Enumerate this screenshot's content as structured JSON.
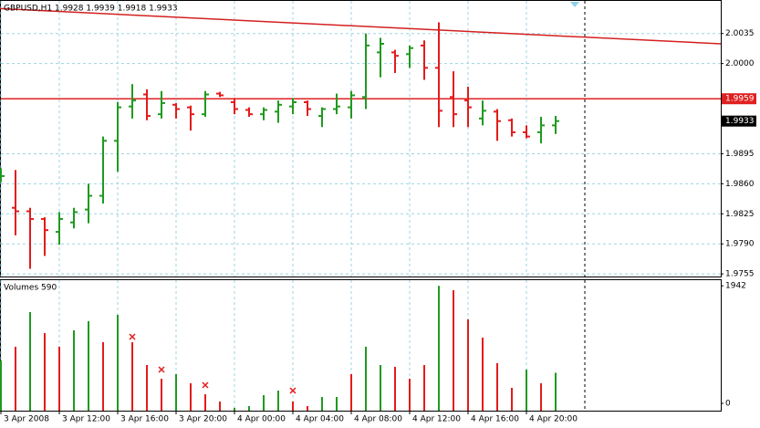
{
  "chart_data": [
    {
      "type": "ohlc",
      "title": "GBPUSD,H1  1.9928 1.9939 1.9918 1.9933",
      "categories": [
        "3 Apr 2008",
        null,
        null,
        null,
        "3 Apr 12:00",
        null,
        null,
        null,
        "3 Apr 16:00",
        null,
        null,
        null,
        "3 Apr 20:00",
        null,
        null,
        null,
        "4 Apr 00:00",
        null,
        null,
        null,
        "4 Apr 04:00",
        null,
        null,
        null,
        "4 Apr 08:00",
        null,
        null,
        null,
        "4 Apr 12:00",
        null,
        null,
        null,
        "4 Apr 16:00",
        null,
        null,
        null,
        "4 Apr 20:00",
        null,
        null
      ],
      "open": [
        1.9865,
        1.9832,
        1.9828,
        1.9819,
        1.9804,
        1.9815,
        1.983,
        1.9846,
        1.991,
        1.995,
        1.9964,
        1.9941,
        1.9952,
        1.9949,
        1.9941,
        1.9965,
        1.9955,
        1.9946,
        1.9941,
        1.9944,
        1.995,
        1.9955,
        1.9939,
        1.9947,
        1.9949,
        1.9961,
        2.0013,
        2.0013,
        2.0011,
        2.0021,
        1.9995,
        1.9961,
        1.9957,
        1.9936,
        1.9944,
        1.9934,
        1.992,
        1.992,
        1.9928
      ],
      "high": [
        1.9878,
        1.9876,
        1.9832,
        1.9821,
        1.9827,
        1.9832,
        1.986,
        1.9915,
        1.9955,
        1.9976,
        1.997,
        1.9968,
        1.9954,
        1.9951,
        1.9968,
        1.9967,
        1.996,
        1.9949,
        1.9949,
        1.9957,
        1.996,
        1.9957,
        1.9949,
        1.9965,
        1.9968,
        2.0035,
        2.003,
        2.0016,
        2.0021,
        2.0027,
        2.0048,
        1.9991,
        1.9973,
        1.9957,
        1.9947,
        1.9936,
        1.9928,
        1.9938,
        1.9939
      ],
      "low": [
        1.9862,
        1.98,
        1.9761,
        1.9776,
        1.9789,
        1.9808,
        1.9814,
        1.9837,
        1.9874,
        1.9936,
        1.9934,
        1.9936,
        1.9936,
        1.9922,
        1.9938,
        1.9961,
        1.9941,
        1.9938,
        1.9934,
        1.9931,
        1.9941,
        1.9939,
        1.9926,
        1.9941,
        1.9936,
        1.9947,
        1.9984,
        1.9989,
        1.9995,
        1.9981,
        1.9926,
        1.9926,
        1.9926,
        1.9928,
        1.991,
        1.9915,
        1.9913,
        1.9907,
        1.9918
      ],
      "close": [
        1.9869,
        1.9828,
        1.9819,
        1.9806,
        1.9819,
        1.9827,
        1.9846,
        1.991,
        1.9949,
        1.9957,
        1.9939,
        1.9954,
        1.9947,
        1.9941,
        1.9964,
        1.9963,
        1.9947,
        1.9941,
        1.9946,
        1.9952,
        1.9955,
        1.9947,
        1.9947,
        1.995,
        1.9963,
        2.0021,
        2.0023,
        2.0009,
        2.0018,
        1.9995,
        1.9945,
        1.9941,
        1.9949,
        1.9945,
        1.9933,
        1.992,
        1.9915,
        1.9928,
        1.9933
      ],
      "up_color": "#1f9a1f",
      "down_color": "#e41b1b",
      "ylim": [
        1.9752,
        2.0074
      ],
      "yticks": [
        {
          "value": 2.0035,
          "label": "2.0035"
        },
        {
          "value": 2.0,
          "label": "2.0000"
        },
        {
          "value": 1.9895,
          "label": "1.9895"
        },
        {
          "value": 1.986,
          "label": "1.9860"
        },
        {
          "value": 1.9825,
          "label": "1.9825"
        },
        {
          "value": 1.979,
          "label": "1.9790"
        },
        {
          "value": 1.9755,
          "label": "1.9755"
        }
      ],
      "grid": true,
      "level": {
        "value": 1.9959,
        "label": "1.9959",
        "color": "#e02020"
      },
      "current_price": {
        "value": 1.9933,
        "label": "1.9933"
      },
      "trendline": {
        "values": [
          2.0064,
          2.0023
        ],
        "color": "#d42020"
      }
    },
    {
      "type": "volume",
      "title": "Volumes 590",
      "values": [
        781,
        994,
        1534,
        1207,
        994,
        1250,
        1392,
        1065,
        1491,
        1065,
        710,
        497,
        568,
        426,
        256,
        142,
        43,
        71,
        241,
        312,
        142,
        71,
        213,
        213,
        568,
        994,
        710,
        682,
        497,
        710,
        1942,
        1874,
        1420,
        1136,
        738,
        355,
        639,
        426,
        590
      ],
      "colors": [
        "#1f9a1f",
        "#e41b1b",
        "#1f9a1f",
        "#e41b1b",
        "#e41b1b",
        "#1f9a1f",
        "#1f9a1f",
        "#e41b1b",
        "#1f9a1f",
        "#e41b1b",
        "#e41b1b",
        "#e41b1b",
        "#1f9a1f",
        "#e41b1b",
        "#e41b1b",
        "#e41b1b",
        "#1f9a1f",
        "#1f9a1f",
        "#1f9a1f",
        "#1f9a1f",
        "#e41b1b",
        "#e41b1b",
        "#1f9a1f",
        "#1f9a1f",
        "#e41b1b",
        "#1f9a1f",
        "#1f9a1f",
        "#e41b1b",
        "#e41b1b",
        "#e41b1b",
        "#1f9a1f",
        "#e41b1b",
        "#e41b1b",
        "#e41b1b",
        "#e41b1b",
        "#e41b1b",
        "#1f9a1f",
        "#e41b1b",
        "#1f9a1f"
      ],
      "ylim": [
        0,
        2030
      ],
      "yticks": [
        1942,
        0
      ]
    }
  ]
}
